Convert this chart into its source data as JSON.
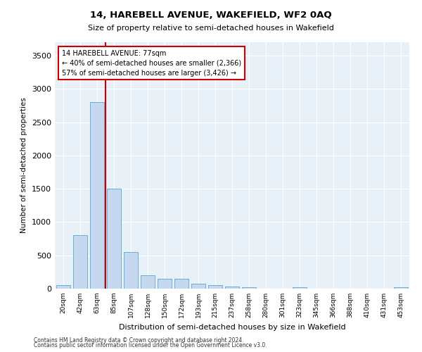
{
  "title": "14, HAREBELL AVENUE, WAKEFIELD, WF2 0AQ",
  "subtitle": "Size of property relative to semi-detached houses in Wakefield",
  "xlabel": "Distribution of semi-detached houses by size in Wakefield",
  "ylabel": "Number of semi-detached properties",
  "categories": [
    "20sqm",
    "42sqm",
    "63sqm",
    "85sqm",
    "107sqm",
    "128sqm",
    "150sqm",
    "172sqm",
    "193sqm",
    "215sqm",
    "237sqm",
    "258sqm",
    "280sqm",
    "301sqm",
    "323sqm",
    "345sqm",
    "366sqm",
    "388sqm",
    "410sqm",
    "431sqm",
    "453sqm"
  ],
  "bar_values": [
    50,
    800,
    2800,
    1500,
    550,
    200,
    150,
    150,
    75,
    50,
    30,
    20,
    0,
    0,
    20,
    0,
    0,
    0,
    0,
    0,
    20
  ],
  "bar_color": "#c5d8f0",
  "bar_edge_color": "#6baed6",
  "vline_x_index": 2.5,
  "vline_color": "#cc0000",
  "annotation_text_line1": "14 HAREBELL AVENUE: 77sqm",
  "annotation_text_line2": "← 40% of semi-detached houses are smaller (2,366)",
  "annotation_text_line3": "57% of semi-detached houses are larger (3,426) →",
  "annotation_box_color": "#cc0000",
  "ylim": [
    0,
    3700
  ],
  "yticks": [
    0,
    500,
    1000,
    1500,
    2000,
    2500,
    3000,
    3500
  ],
  "background_color": "#e8f0f8",
  "grid_color": "#ffffff",
  "footer_line1": "Contains HM Land Registry data © Crown copyright and database right 2024.",
  "footer_line2": "Contains public sector information licensed under the Open Government Licence v3.0."
}
